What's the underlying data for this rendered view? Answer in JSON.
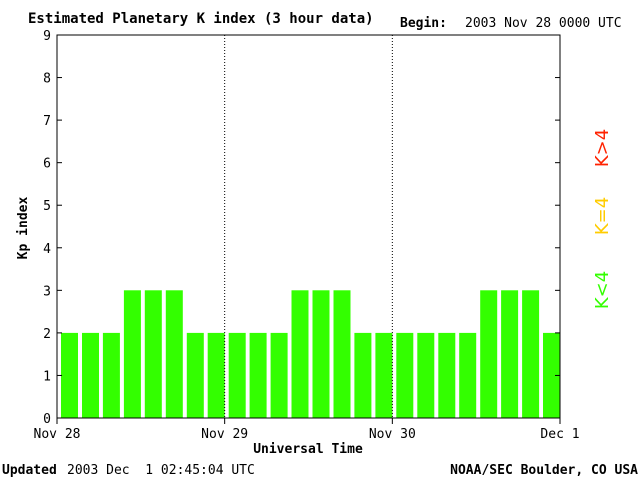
{
  "header": {
    "title": "Estimated Planetary K index (3 hour data)",
    "begin_label": "Begin:",
    "begin_value": "2003 Nov 28 0000 UTC"
  },
  "footer": {
    "updated_label": "Updated",
    "updated_value": "2003 Dec  1 02:45:04 UTC",
    "credit": "NOAA/SEC Boulder, CO USA"
  },
  "legend": {
    "low": {
      "text": "K<4",
      "color": "#33ff00"
    },
    "mid": {
      "text": "K=4",
      "color": "#ffcc00"
    },
    "high": {
      "text": "K>4",
      "color": "#ff2200"
    }
  },
  "chart_data": {
    "type": "bar",
    "title": "Estimated Planetary K index (3 hour data)",
    "xlabel": "Universal Time",
    "ylabel": "Kp index",
    "ylim": [
      0,
      9
    ],
    "yticks": [
      "0",
      "1",
      "2",
      "3",
      "4",
      "5",
      "6",
      "7",
      "8",
      "9"
    ],
    "xticks": [
      "Nov 28",
      "Nov 29",
      "Nov 30",
      "Dec 1"
    ],
    "grid": "vertical dotted lines at day boundaries",
    "interval_hours": 3,
    "bar_color": "#33ff00",
    "values": [
      2,
      2,
      2,
      3,
      3,
      3,
      2,
      2,
      2,
      2,
      2,
      3,
      3,
      3,
      2,
      2,
      2,
      2,
      2,
      2,
      3,
      3,
      3,
      2
    ]
  }
}
